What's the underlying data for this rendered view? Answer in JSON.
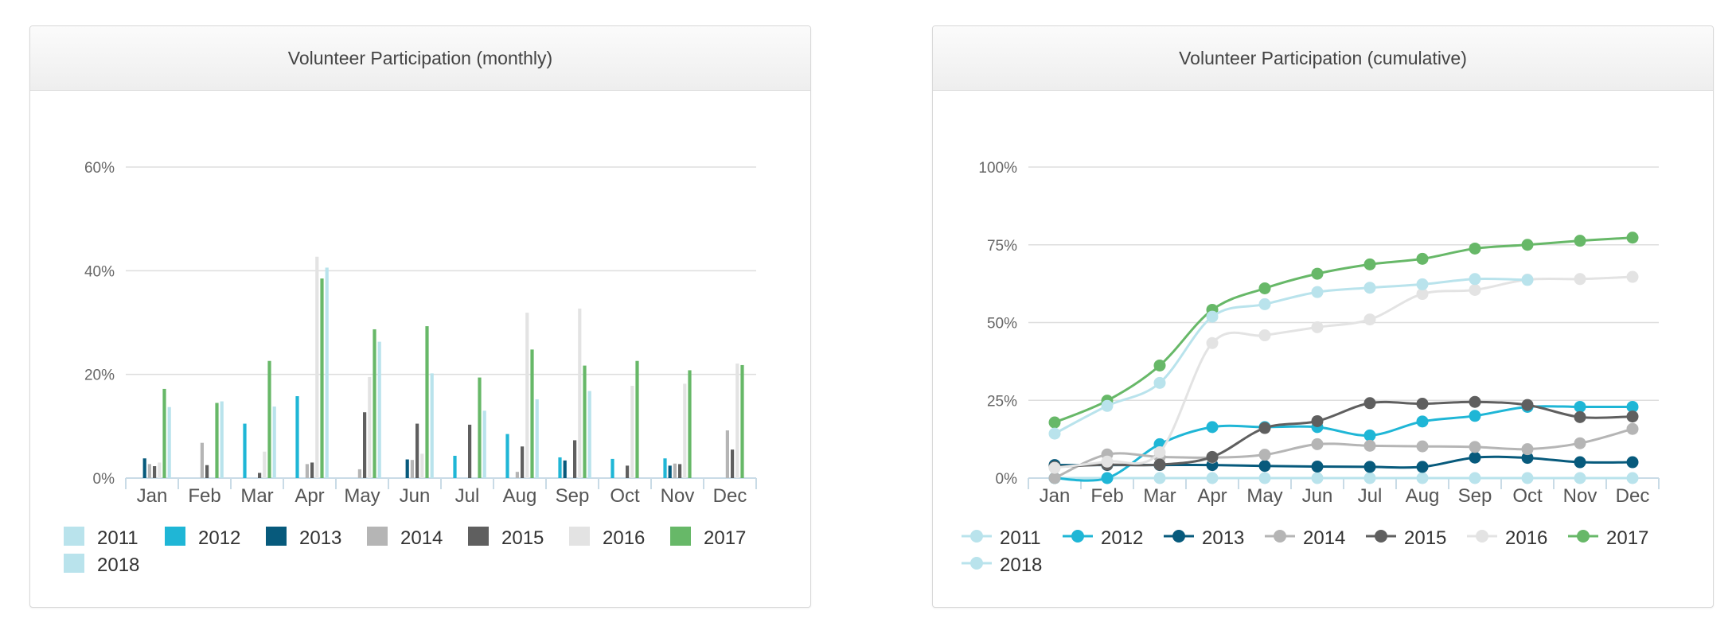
{
  "charts": [
    {
      "title": "Volunteer Participation (monthly)",
      "chart_data": {
        "type": "bar",
        "title": "Volunteer Participation (monthly)",
        "categories": [
          "Jan",
          "Feb",
          "Mar",
          "Apr",
          "May",
          "Jun",
          "Jul",
          "Aug",
          "Sep",
          "Oct",
          "Nov",
          "Dec"
        ],
        "ylim": [
          0,
          60
        ],
        "yticks": [
          0,
          20,
          40,
          60
        ],
        "ytick_labels": [
          "0%",
          "20%",
          "40%",
          "60%"
        ],
        "grid": true,
        "legend": "bottom",
        "series": [
          {
            "name": "2011",
            "color": "#b9e3ec",
            "values": [
              0,
              0,
              0,
              0,
              0,
              0,
              0,
              0,
              0,
              0,
              0,
              0
            ]
          },
          {
            "name": "2012",
            "color": "#1fb6d6",
            "values": [
              0,
              0,
              10.5,
              15.8,
              0,
              0,
              4.3,
              8.5,
              4,
              3.7,
              3.8,
              0
            ]
          },
          {
            "name": "2013",
            "color": "#075a7c",
            "values": [
              3.8,
              0,
              0,
              0,
              0,
              3.6,
              0,
              0,
              3.4,
              0,
              2.4,
              0
            ]
          },
          {
            "name": "2014",
            "color": "#b5b5b5",
            "values": [
              2.7,
              6.8,
              0,
              2.7,
              1.7,
              3.5,
              0,
              1.2,
              0,
              0,
              2.8,
              9.2
            ]
          },
          {
            "name": "2015",
            "color": "#5f5f5f",
            "values": [
              2.3,
              2.5,
              1,
              3,
              12.7,
              10.5,
              10.3,
              6.1,
              7.3,
              2.4,
              2.7,
              5.5
            ]
          },
          {
            "name": "2016",
            "color": "#e3e3e3",
            "values": [
              3,
              0,
              5.1,
              42.7,
              19.5,
              4.7,
              0,
              31.9,
              32.7,
              17.8,
              18.2,
              22.1
            ]
          },
          {
            "name": "2017",
            "color": "#67b868",
            "values": [
              17.2,
              14.5,
              22.6,
              38.5,
              28.7,
              29.3,
              19.4,
              24.8,
              21.7,
              22.6,
              20.8,
              21.8
            ]
          },
          {
            "name": "2018",
            "color": "#b9e3ec",
            "values": [
              13.7,
              14.8,
              13.8,
              40.6,
              26.3,
              20.2,
              13,
              15.2,
              16.8,
              0,
              0,
              0
            ]
          }
        ]
      }
    },
    {
      "title": "Volunteer Participation (cumulative)",
      "chart_data": {
        "type": "line",
        "title": "Volunteer Participation (cumulative)",
        "categories": [
          "Jan",
          "Feb",
          "Mar",
          "Apr",
          "May",
          "Jun",
          "Jul",
          "Aug",
          "Sep",
          "Oct",
          "Nov",
          "Dec"
        ],
        "ylim": [
          0,
          100
        ],
        "yticks": [
          0,
          25,
          50,
          75,
          100
        ],
        "ytick_labels": [
          "0%",
          "25%",
          "50%",
          "75%",
          "100%"
        ],
        "grid": true,
        "legend": "bottom",
        "series": [
          {
            "name": "2011",
            "color": "#b9e3ec",
            "values": [
              0,
              0,
              0,
              0,
              0,
              0,
              0,
              0,
              0,
              0,
              0,
              0
            ]
          },
          {
            "name": "2012",
            "color": "#1fb6d6",
            "values": [
              0,
              0,
              10.9,
              16.4,
              16.4,
              16.4,
              13.7,
              18.2,
              20,
              22.9,
              22.9,
              22.9
            ]
          },
          {
            "name": "2013",
            "color": "#075a7c",
            "values": [
              4.2,
              4.2,
              4.2,
              4.2,
              3.9,
              3.7,
              3.6,
              3.6,
              6.6,
              6.5,
              5.1,
              5.1
            ]
          },
          {
            "name": "2014",
            "color": "#b5b5b5",
            "values": [
              0,
              7.6,
              6.8,
              6.6,
              7.5,
              10.9,
              10.4,
              10.2,
              10,
              9.3,
              11.2,
              15.8
            ]
          },
          {
            "name": "2015",
            "color": "#5f5f5f",
            "values": [
              3.6,
              4.3,
              4.3,
              6.8,
              16.1,
              18.3,
              24.1,
              23.9,
              24.5,
              23.5,
              19.6,
              19.8
            ]
          },
          {
            "name": "2016",
            "color": "#e3e3e3",
            "values": [
              3.3,
              5.3,
              8.3,
              43.4,
              45.9,
              48.5,
              51,
              59.2,
              60.5,
              63.8,
              64,
              64.7
            ]
          },
          {
            "name": "2017",
            "color": "#67b868",
            "values": [
              17.9,
              24.9,
              36.2,
              54.1,
              61,
              65.7,
              68.7,
              70.5,
              73.8,
              75,
              76.3,
              77.3
            ]
          },
          {
            "name": "2018",
            "color": "#b9e3ec",
            "values": [
              14.3,
              23.2,
              30.6,
              51.9,
              55.9,
              59.8,
              61.2,
              62.3,
              64,
              63.7,
              null,
              null
            ]
          }
        ]
      }
    }
  ]
}
